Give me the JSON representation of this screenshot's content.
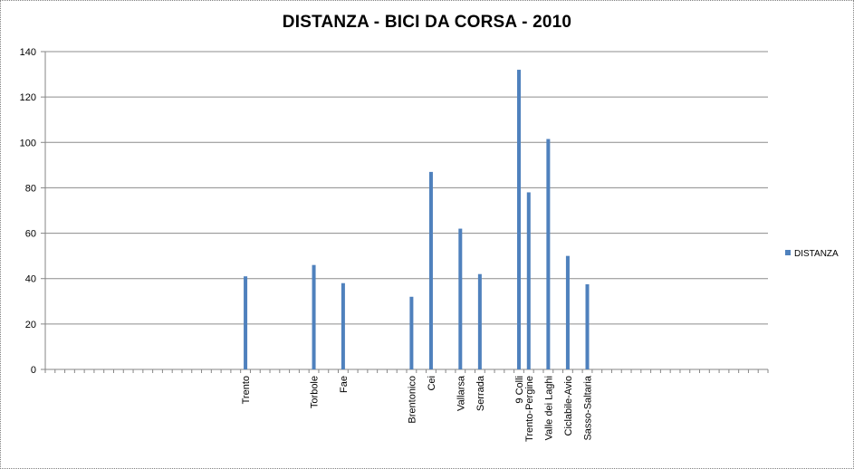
{
  "chart_data": {
    "type": "bar",
    "title": "DISTANZA - BICI DA CORSA - 2010",
    "xlabel": "",
    "ylabel": "",
    "ylim": [
      0,
      140
    ],
    "yticks": [
      0,
      20,
      40,
      60,
      80,
      100,
      120,
      140
    ],
    "grid": true,
    "legend_position": "right",
    "categories": [
      "Trento",
      "Torbole",
      "Fae",
      "Brentonico",
      "Cei",
      "Vallarsa",
      "Serrada",
      "9 Colli",
      "Trento-Pergine",
      "Valle dei Laghi",
      "Ciclabile-Avio",
      "Sasso-Saltaria"
    ],
    "series": [
      {
        "name": "DISTANZA",
        "color": "#4f81bd",
        "values": [
          41,
          46,
          38,
          32,
          87,
          62,
          42,
          132,
          78,
          101.5,
          50,
          37.5
        ]
      }
    ]
  }
}
